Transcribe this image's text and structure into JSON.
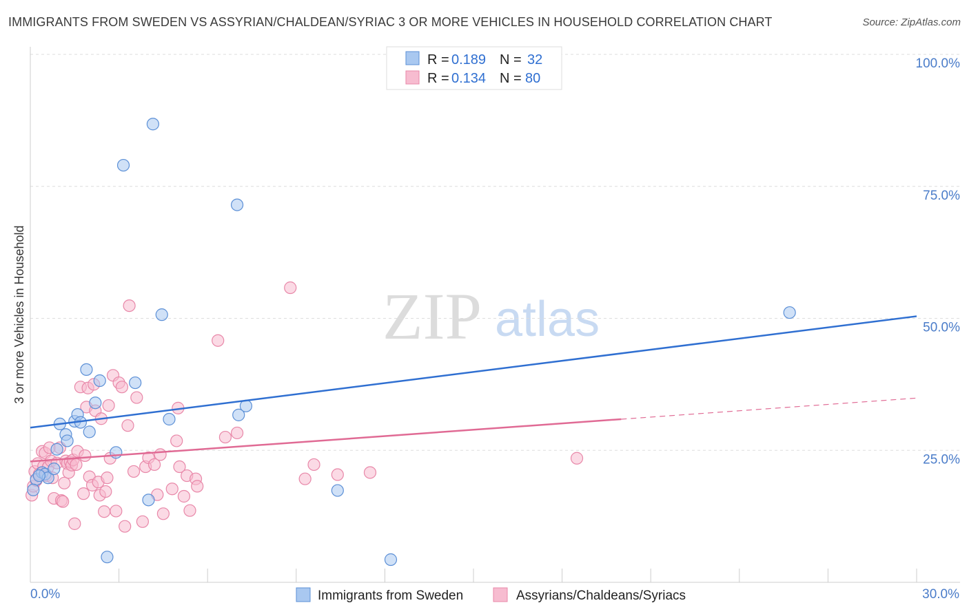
{
  "header": {
    "title": "IMMIGRANTS FROM SWEDEN VS ASSYRIAN/CHALDEAN/SYRIAC 3 OR MORE VEHICLES IN HOUSEHOLD CORRELATION CHART",
    "source": "Source: ZipAtlas.com"
  },
  "watermark": {
    "zip": "ZIP",
    "atlas": "atlas"
  },
  "chart_data": {
    "type": "scatter",
    "title": "IMMIGRANTS FROM SWEDEN VS ASSYRIAN/CHALDEAN/SYRIAC 3 OR MORE VEHICLES IN HOUSEHOLD CORRELATION CHART",
    "xlabel": "",
    "ylabel": "3 or more Vehicles in Household",
    "xlim": [
      0,
      30
    ],
    "ylim": [
      0,
      100
    ],
    "x_tick_labels": [
      "0.0%",
      "30.0%"
    ],
    "y_ticks": [
      25,
      50,
      75,
      100
    ],
    "y_tick_labels": [
      "25.0%",
      "50.0%",
      "75.0%",
      "100.0%"
    ],
    "grid": true,
    "legend_position": "top-center",
    "colors": {
      "sweden_fill": "#a9c8f0",
      "sweden_stroke": "#5b8fd6",
      "sweden_line": "#2f6fd1",
      "assyrian_fill": "#f7bcd0",
      "assyrian_stroke": "#e887a8",
      "assyrian_line": "#e06a94",
      "axis_label": "#4a7cc9",
      "grid": "#dddddd"
    },
    "legend": [
      {
        "r_label": "R = ",
        "r_value": "0.189",
        "n_label": "N = ",
        "n_value": "32"
      },
      {
        "r_label": "R = ",
        "r_value": "0.134",
        "n_label": "N = ",
        "n_value": "80"
      }
    ],
    "series": [
      {
        "name": "Immigrants from Sweden",
        "trend": {
          "x0": 0,
          "y0": 29.3,
          "x1": 30,
          "y1": 50.4,
          "dash_from": null
        },
        "points": [
          [
            0.2,
            19.5
          ],
          [
            0.4,
            20.8
          ],
          [
            0.5,
            20.5
          ],
          [
            0.6,
            19.8
          ],
          [
            0.8,
            21.5
          ],
          [
            0.9,
            25.2
          ],
          [
            1.0,
            30.0
          ],
          [
            1.2,
            28.0
          ],
          [
            1.25,
            26.8
          ],
          [
            1.5,
            30.5
          ],
          [
            1.6,
            31.8
          ],
          [
            1.7,
            30.3
          ],
          [
            1.9,
            40.3
          ],
          [
            2.0,
            28.5
          ],
          [
            2.2,
            34.0
          ],
          [
            2.35,
            38.2
          ],
          [
            2.6,
            4.8
          ],
          [
            2.9,
            24.6
          ],
          [
            3.15,
            79.0
          ],
          [
            3.55,
            37.8
          ],
          [
            4.0,
            15.6
          ],
          [
            4.15,
            86.8
          ],
          [
            4.45,
            50.7
          ],
          [
            4.7,
            30.9
          ],
          [
            7.0,
            71.5
          ],
          [
            7.05,
            31.7
          ],
          [
            7.3,
            33.4
          ],
          [
            10.4,
            17.4
          ],
          [
            12.2,
            4.3
          ],
          [
            25.7,
            51.1
          ],
          [
            0.1,
            17.5
          ],
          [
            0.3,
            20.2
          ]
        ]
      },
      {
        "name": "Assyrians/Chaldeans/Syriacs",
        "trend": {
          "x0": 0,
          "y0": 22.9,
          "x1": 30,
          "y1": 34.9,
          "dash_from": 20.0
        },
        "points": [
          [
            0.05,
            16.5
          ],
          [
            0.1,
            18.2
          ],
          [
            0.15,
            21.0
          ],
          [
            0.2,
            19.3
          ],
          [
            0.25,
            22.5
          ],
          [
            0.3,
            20.5
          ],
          [
            0.4,
            24.8
          ],
          [
            0.45,
            22.0
          ],
          [
            0.5,
            24.5
          ],
          [
            0.55,
            20.2
          ],
          [
            0.6,
            21.8
          ],
          [
            0.65,
            25.5
          ],
          [
            0.7,
            23.0
          ],
          [
            0.75,
            19.8
          ],
          [
            0.8,
            15.9
          ],
          [
            0.9,
            22.6
          ],
          [
            1.0,
            25.5
          ],
          [
            1.05,
            15.5
          ],
          [
            1.1,
            15.3
          ],
          [
            1.15,
            18.8
          ],
          [
            1.2,
            23.0
          ],
          [
            1.25,
            22.5
          ],
          [
            1.3,
            20.8
          ],
          [
            1.35,
            22.8
          ],
          [
            1.4,
            22.2
          ],
          [
            1.45,
            23.2
          ],
          [
            1.5,
            11.1
          ],
          [
            1.55,
            22.3
          ],
          [
            1.6,
            24.8
          ],
          [
            1.7,
            37.0
          ],
          [
            1.8,
            16.8
          ],
          [
            1.85,
            24.0
          ],
          [
            1.9,
            33.2
          ],
          [
            1.95,
            36.8
          ],
          [
            2.0,
            20.0
          ],
          [
            2.1,
            18.4
          ],
          [
            2.15,
            37.5
          ],
          [
            2.2,
            32.5
          ],
          [
            2.3,
            19.0
          ],
          [
            2.35,
            16.5
          ],
          [
            2.4,
            31.0
          ],
          [
            2.5,
            13.4
          ],
          [
            2.55,
            17.2
          ],
          [
            2.6,
            19.8
          ],
          [
            2.65,
            33.5
          ],
          [
            2.7,
            23.5
          ],
          [
            2.8,
            39.2
          ],
          [
            2.9,
            13.5
          ],
          [
            3.0,
            37.8
          ],
          [
            3.1,
            37.0
          ],
          [
            3.2,
            10.6
          ],
          [
            3.3,
            29.7
          ],
          [
            3.35,
            52.4
          ],
          [
            3.5,
            21.0
          ],
          [
            3.6,
            35.0
          ],
          [
            3.8,
            11.5
          ],
          [
            3.9,
            21.9
          ],
          [
            4.0,
            23.6
          ],
          [
            4.2,
            22.3
          ],
          [
            4.3,
            16.6
          ],
          [
            4.4,
            24.2
          ],
          [
            4.5,
            13.0
          ],
          [
            4.8,
            17.7
          ],
          [
            4.95,
            26.8
          ],
          [
            5.0,
            33.0
          ],
          [
            5.05,
            21.9
          ],
          [
            5.2,
            16.3
          ],
          [
            5.3,
            20.2
          ],
          [
            5.4,
            13.6
          ],
          [
            5.6,
            19.6
          ],
          [
            5.65,
            18.2
          ],
          [
            6.35,
            45.8
          ],
          [
            6.6,
            27.5
          ],
          [
            7.0,
            28.3
          ],
          [
            8.8,
            55.8
          ],
          [
            9.3,
            19.6
          ],
          [
            9.6,
            22.3
          ],
          [
            10.4,
            20.4
          ],
          [
            11.5,
            20.8
          ],
          [
            18.5,
            23.5
          ]
        ]
      }
    ],
    "bottom_legend": [
      "Immigrants from Sweden",
      "Assyrians/Chaldeans/Syriacs"
    ]
  }
}
